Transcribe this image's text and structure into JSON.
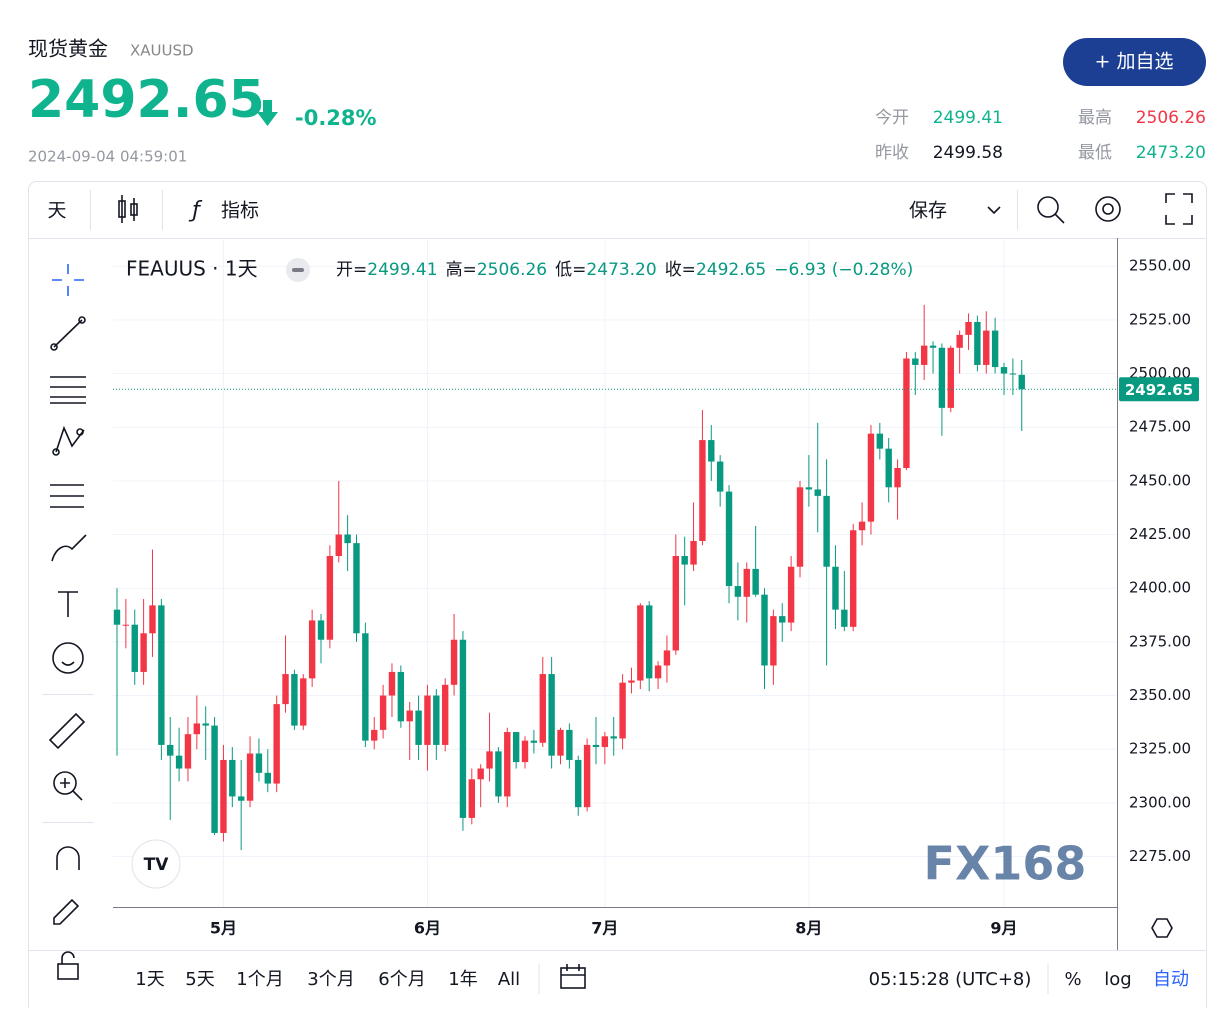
{
  "header": {
    "name": "现货黄金",
    "symbol": "XAUUSD",
    "price": "2492.65",
    "change": "-0.28%",
    "timestamp": "2024-09-04 04:59:01",
    "button": "+ 加自选"
  },
  "stats": [
    {
      "label": "今开",
      "value": "2499.41"
    },
    {
      "label": "最高",
      "value": "2506.26"
    },
    {
      "label": "昨收",
      "value": "2499.58"
    },
    {
      "label": "最低",
      "value": "2473.20"
    }
  ],
  "toolbar": {
    "interval": "天",
    "indicators": "指标",
    "save": "保存"
  },
  "chart_data": {
    "type": "candlestick",
    "title": "FEAUUS · 1天",
    "ohlc_legend": [
      {
        "label": "开=",
        "value": "2499.41"
      },
      {
        "label": "高=",
        "value": "2506.26"
      },
      {
        "label": "低=",
        "value": "2473.20"
      },
      {
        "label": "收=",
        "value": "2492.65"
      }
    ],
    "change_label": "−6.93 (−0.28%)",
    "up_color": "#f23645",
    "down_color": "#089981",
    "grid": true,
    "ylim": [
      2251.5,
      2562.2
    ],
    "yticks": [
      {
        "value": 2275,
        "label": "2275.00"
      },
      {
        "value": 2300,
        "label": "2300.00"
      },
      {
        "value": 2325,
        "label": "2325.00"
      },
      {
        "value": 2350,
        "label": "2350.00"
      },
      {
        "value": 2375,
        "label": "2375.00"
      },
      {
        "value": 2400,
        "label": "2400.00"
      },
      {
        "value": 2425,
        "label": "2425.00"
      },
      {
        "value": 2450,
        "label": "2450.00"
      },
      {
        "value": 2475,
        "label": "2475.00"
      },
      {
        "value": 2500,
        "label": "2500.00"
      },
      {
        "value": 2525,
        "label": "2525.00"
      },
      {
        "value": 2550,
        "label": "2550.00"
      }
    ],
    "last_price": {
      "value": 2492.65,
      "label": "2492.65"
    },
    "categories": [
      null,
      null,
      null,
      null,
      null,
      null,
      null,
      null,
      null,
      null,
      null,
      null,
      "5月",
      null,
      null,
      null,
      null,
      null,
      null,
      null,
      null,
      null,
      null,
      null,
      null,
      null,
      null,
      null,
      null,
      null,
      null,
      null,
      null,
      null,
      null,
      "6月",
      null,
      null,
      null,
      null,
      null,
      null,
      null,
      null,
      null,
      null,
      null,
      null,
      null,
      null,
      null,
      null,
      null,
      null,
      null,
      "7月",
      null,
      null,
      null,
      null,
      null,
      null,
      null,
      null,
      null,
      null,
      null,
      null,
      null,
      null,
      null,
      null,
      null,
      null,
      null,
      null,
      null,
      null,
      "8月",
      null,
      null,
      null,
      null,
      null,
      null,
      null,
      null,
      null,
      null,
      null,
      null,
      null,
      null,
      null,
      null,
      null,
      null,
      null,
      null,
      null,
      "9月",
      null,
      null
    ],
    "open": [
      2390,
      2383,
      2383,
      2361,
      2379,
      2392,
      2327,
      2322,
      2316,
      2332,
      2337,
      2336,
      2286,
      2320,
      2303,
      2301,
      2323,
      2314,
      2309,
      2346,
      2360,
      2336,
      2358,
      2385,
      2376,
      2415,
      2425,
      2421,
      2379,
      2329,
      2334,
      2350,
      2361,
      2338,
      2343,
      2327,
      2350,
      2327,
      2355,
      2376,
      2293,
      2311,
      2316,
      2324,
      2303,
      2333,
      2319,
      2329,
      2328,
      2360,
      2322,
      2334,
      2320,
      2298,
      2327,
      2326,
      2331,
      2330,
      2356,
      2357,
      2392,
      2358,
      2364,
      2371,
      2415,
      2411,
      2422,
      2469,
      2459,
      2445,
      2401,
      2396,
      2409,
      2397,
      2364,
      2387,
      2384,
      2410,
      2447,
      2446,
      2443,
      2410,
      2390,
      2382,
      2427,
      2431,
      2472,
      2465,
      2447,
      2456,
      2507,
      2504,
      2513,
      2512,
      2484,
      2512,
      2518,
      2524,
      2504,
      2520,
      2503,
      2500,
      2499.41
    ],
    "high": [
      2400,
      2395,
      2390,
      2395,
      2418,
      2395,
      2340,
      2335,
      2340,
      2350,
      2345,
      2340,
      2327,
      2326,
      2320,
      2331,
      2330,
      2325,
      2350,
      2378,
      2362,
      2360,
      2390,
      2388,
      2420,
      2450,
      2434,
      2425,
      2384,
      2340,
      2355,
      2365,
      2364,
      2347,
      2350,
      2355,
      2353,
      2358,
      2388,
      2380,
      2316,
      2318,
      2342,
      2326,
      2335,
      2333,
      2331,
      2334,
      2368,
      2368,
      2335,
      2337,
      2322,
      2330,
      2340,
      2333,
      2340,
      2360,
      2363,
      2393,
      2394,
      2366,
      2378,
      2425,
      2424,
      2440,
      2483,
      2476,
      2462,
      2448,
      2412,
      2412,
      2429,
      2400,
      2390,
      2393,
      2415,
      2450,
      2462,
      2477,
      2460,
      2420,
      2408,
      2430,
      2440,
      2476,
      2477,
      2470,
      2460,
      2510,
      2510,
      2532,
      2515,
      2514,
      2513,
      2520,
      2528,
      2527,
      2529,
      2526,
      2505,
      2507,
      2506.26
    ],
    "low": [
      2322,
      2372,
      2355,
      2355,
      2368,
      2320,
      2292,
      2310,
      2310,
      2325,
      2320,
      2285,
      2282,
      2298,
      2278,
      2298,
      2310,
      2305,
      2305,
      2342,
      2334,
      2334,
      2354,
      2365,
      2372,
      2412,
      2408,
      2375,
      2326,
      2325,
      2330,
      2340,
      2335,
      2320,
      2320,
      2315,
      2320,
      2324,
      2350,
      2287,
      2290,
      2298,
      2310,
      2300,
      2298,
      2316,
      2316,
      2323,
      2326,
      2316,
      2318,
      2316,
      2294,
      2296,
      2318,
      2318,
      2322,
      2325,
      2351,
      2353,
      2352,
      2353,
      2356,
      2369,
      2392,
      2408,
      2420,
      2450,
      2438,
      2393,
      2385,
      2384,
      2396,
      2353,
      2355,
      2375,
      2380,
      2405,
      2438,
      2426,
      2364,
      2381,
      2380,
      2380,
      2420,
      2425,
      2460,
      2440,
      2432,
      2455,
      2490,
      2497,
      2500,
      2471,
      2482,
      2500,
      2511,
      2501,
      2500,
      2500,
      2490,
      2490,
      2473.2
    ],
    "close": [
      2383,
      2383,
      2361,
      2379,
      2392,
      2327,
      2322,
      2316,
      2332,
      2337,
      2336,
      2286,
      2320,
      2303,
      2301,
      2323,
      2314,
      2309,
      2346,
      2360,
      2336,
      2358,
      2385,
      2376,
      2415,
      2425,
      2421,
      2379,
      2329,
      2334,
      2350,
      2361,
      2338,
      2343,
      2327,
      2350,
      2327,
      2355,
      2376,
      2293,
      2311,
      2316,
      2324,
      2303,
      2333,
      2319,
      2329,
      2328,
      2360,
      2322,
      2334,
      2320,
      2298,
      2327,
      2326,
      2331,
      2330,
      2356,
      2357,
      2392,
      2358,
      2364,
      2371,
      2415,
      2411,
      2422,
      2469,
      2459,
      2445,
      2401,
      2396,
      2409,
      2397,
      2364,
      2387,
      2384,
      2410,
      2447,
      2446,
      2443,
      2410,
      2390,
      2382,
      2427,
      2431,
      2472,
      2465,
      2447,
      2456,
      2507,
      2504,
      2513,
      2512,
      2484,
      2512,
      2518,
      2524,
      2504,
      2520,
      2503,
      2500,
      2499.58,
      2492.65
    ]
  },
  "watermark": "FX168",
  "bottom_bar": {
    "ranges": [
      "1天",
      "5天",
      "1个月",
      "3个月",
      "6个月",
      "1年",
      "All"
    ],
    "clock": "05:15:28 (UTC+8)",
    "percent": "%",
    "log": "log",
    "auto": "自动"
  }
}
